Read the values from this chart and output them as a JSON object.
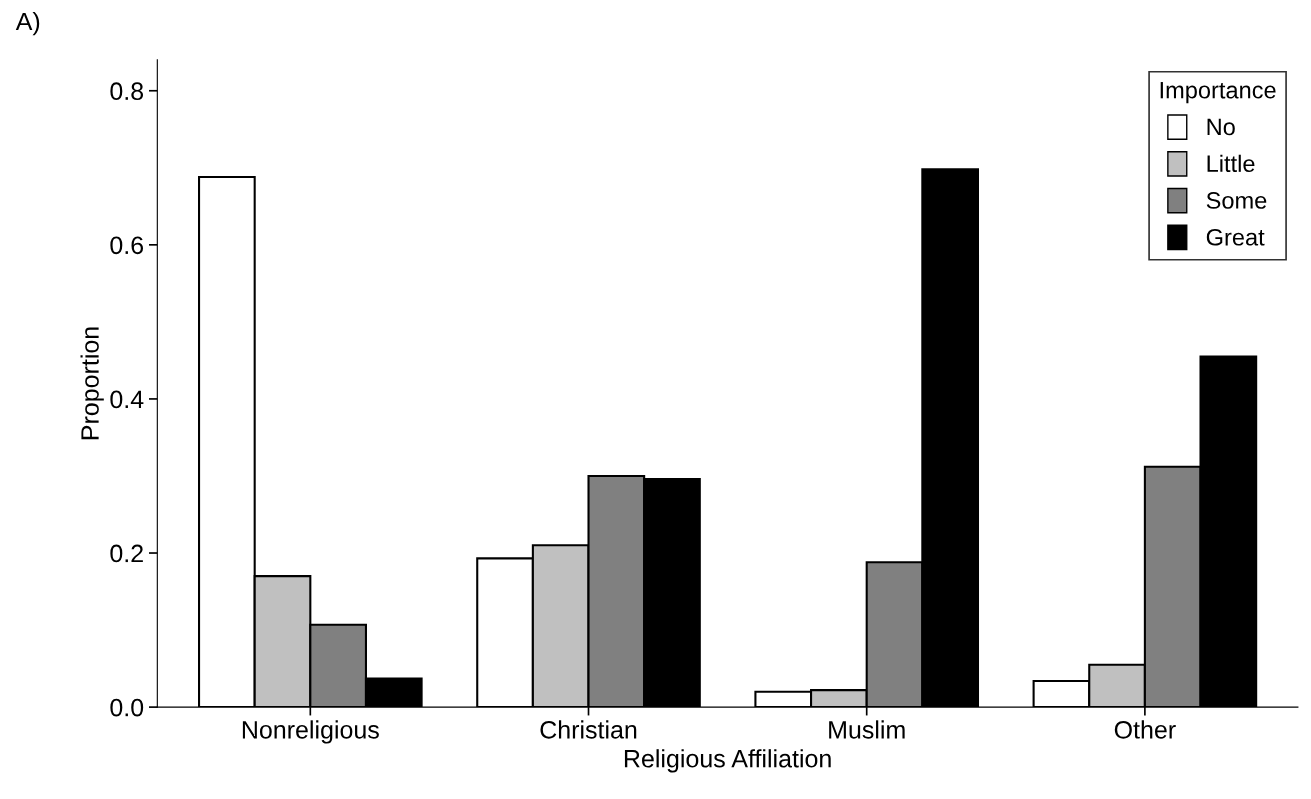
{
  "chart_data": {
    "type": "bar",
    "xlabel": "Religious Affiliation",
    "ylabel": "Proportion",
    "legend_title": "Importance",
    "annotations": [
      "A)"
    ],
    "categories": [
      "Nonreligious",
      "Christian",
      "Muslim",
      "Other"
    ],
    "series": [
      {
        "name": "No",
        "color": "#ffffff",
        "values": [
          0.688,
          0.193,
          0.02,
          0.034
        ]
      },
      {
        "name": "Little",
        "color": "#c0c0c0",
        "values": [
          0.17,
          0.21,
          0.022,
          0.055
        ]
      },
      {
        "name": "Some",
        "color": "#808080",
        "values": [
          0.107,
          0.3,
          0.188,
          0.312
        ]
      },
      {
        "name": "Great",
        "color": "#000000",
        "values": [
          0.037,
          0.296,
          0.698,
          0.455
        ]
      }
    ],
    "ylim": [
      0,
      0.84
    ],
    "yticks": [
      {
        "value": 0,
        "label": "0.0"
      },
      {
        "value": 0.2,
        "label": "0.2"
      },
      {
        "value": 0.4,
        "label": "0.4"
      },
      {
        "value": 0.6,
        "label": "0.6"
      },
      {
        "value": 0.8,
        "label": "0.8"
      }
    ],
    "grid": false,
    "legend": "top right"
  }
}
